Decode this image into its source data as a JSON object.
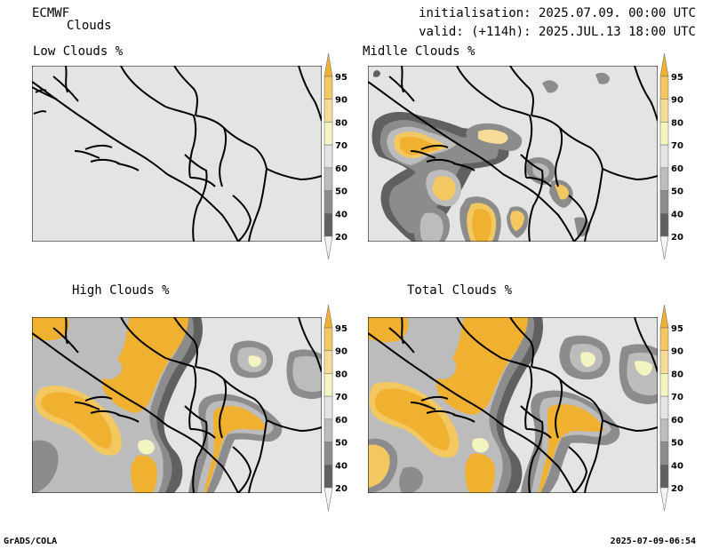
{
  "header": {
    "model": "ECMWF",
    "product": "Clouds",
    "init_label": "initialisation: 2025.07.09. 00:00 UTC",
    "valid_label": "valid: (+114h): 2025.JUL.13 18:00 UTC"
  },
  "panels": [
    {
      "id": "low",
      "title": "Low Clouds %"
    },
    {
      "id": "middle",
      "title": "Midlle Clouds %"
    },
    {
      "id": "high",
      "title": "High Clouds %"
    },
    {
      "id": "total",
      "title": "Total Clouds %"
    }
  ],
  "colorbar": {
    "ticks": [
      "95",
      "90",
      "80",
      "70",
      "60",
      "50",
      "40",
      "20"
    ],
    "colors": [
      "#f0b030",
      "#f4c860",
      "#f6dc98",
      "#f4f4c0",
      "#e4e4e4",
      "#bcbcbc",
      "#8c8c8c",
      "#606060",
      "#f4f4f4"
    ]
  },
  "footer": {
    "left": "GrADS/COLA",
    "right": "2025-07-09-06:54"
  }
}
